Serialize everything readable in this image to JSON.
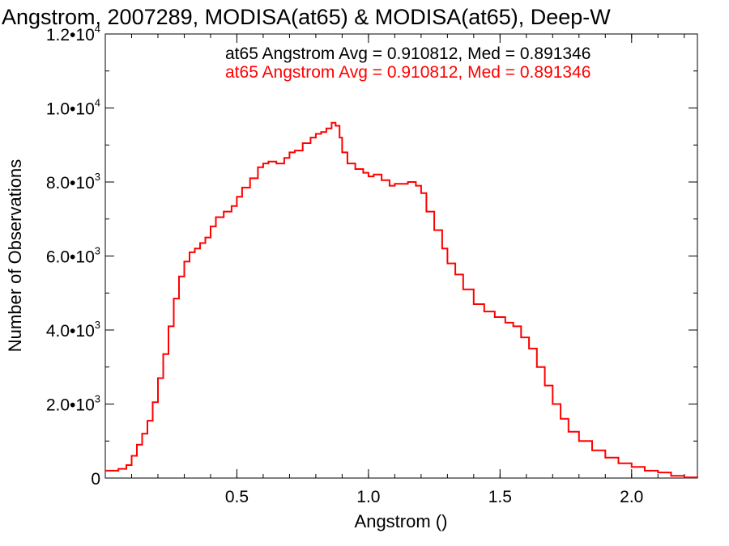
{
  "chart_data": {
    "type": "line",
    "style": "step-histogram",
    "title": "Angstrom, 2007289, MODISA(at65) & MODISA(at65), Deep-W",
    "xlabel": "Angstrom ()",
    "ylabel": "Number of Observations",
    "xlim": [
      0.0,
      2.25
    ],
    "ylim": [
      0,
      12000
    ],
    "x_ticks": [
      {
        "value": 0.5,
        "label": "0.5"
      },
      {
        "value": 1.0,
        "label": "1.0"
      },
      {
        "value": 1.5,
        "label": "1.5"
      },
      {
        "value": 2.0,
        "label": "2.0"
      }
    ],
    "y_ticks": [
      {
        "value": 0,
        "label": "0",
        "exp": ""
      },
      {
        "value": 2000,
        "label": "2.0•10",
        "exp": "3"
      },
      {
        "value": 4000,
        "label": "4.0•10",
        "exp": "3"
      },
      {
        "value": 6000,
        "label": "6.0•10",
        "exp": "3"
      },
      {
        "value": 8000,
        "label": "8.0•10",
        "exp": "3"
      },
      {
        "value": 10000,
        "label": "1.0•10",
        "exp": "4"
      },
      {
        "value": 12000,
        "label": "1.2•10",
        "exp": "4"
      }
    ],
    "x_minor_step": 0.1,
    "y_minor_step": 1000,
    "grid": false,
    "legend_position": "top-right",
    "annotations": [
      {
        "text": "at65 Angstrom Avg = 0.910812, Med = 0.891346",
        "color": "#000000"
      },
      {
        "text": "at65 Angstrom Avg = 0.910812, Med = 0.891346",
        "color": "#ff0000"
      }
    ],
    "series": [
      {
        "color": "#ff0000",
        "x": [
          0.0,
          0.05,
          0.08,
          0.1,
          0.12,
          0.14,
          0.16,
          0.18,
          0.2,
          0.22,
          0.24,
          0.26,
          0.28,
          0.3,
          0.32,
          0.34,
          0.36,
          0.38,
          0.4,
          0.42,
          0.45,
          0.48,
          0.5,
          0.52,
          0.55,
          0.58,
          0.6,
          0.62,
          0.65,
          0.68,
          0.7,
          0.72,
          0.75,
          0.78,
          0.8,
          0.82,
          0.84,
          0.86,
          0.875,
          0.89,
          0.9,
          0.92,
          0.95,
          0.98,
          1.0,
          1.02,
          1.05,
          1.08,
          1.1,
          1.12,
          1.15,
          1.18,
          1.2,
          1.22,
          1.25,
          1.28,
          1.3,
          1.33,
          1.36,
          1.4,
          1.44,
          1.48,
          1.52,
          1.55,
          1.58,
          1.61,
          1.64,
          1.67,
          1.7,
          1.73,
          1.76,
          1.8,
          1.85,
          1.9,
          1.95,
          2.0,
          2.05,
          2.1,
          2.15,
          2.2,
          2.25
        ],
        "y": [
          200,
          250,
          350,
          600,
          900,
          1200,
          1550,
          2050,
          2700,
          3350,
          4100,
          4850,
          5450,
          5850,
          6100,
          6200,
          6350,
          6500,
          6800,
          7050,
          7200,
          7350,
          7600,
          7850,
          8100,
          8400,
          8500,
          8550,
          8500,
          8650,
          8800,
          8850,
          9050,
          9200,
          9300,
          9350,
          9450,
          9600,
          9520,
          9200,
          8800,
          8500,
          8350,
          8250,
          8150,
          8200,
          8050,
          7900,
          7950,
          7950,
          8000,
          7900,
          7700,
          7200,
          6700,
          6200,
          5800,
          5500,
          5100,
          4700,
          4500,
          4350,
          4200,
          4100,
          3800,
          3500,
          3000,
          2500,
          2000,
          1600,
          1250,
          1000,
          750,
          550,
          400,
          300,
          200,
          150,
          60,
          20,
          0
        ]
      }
    ]
  }
}
